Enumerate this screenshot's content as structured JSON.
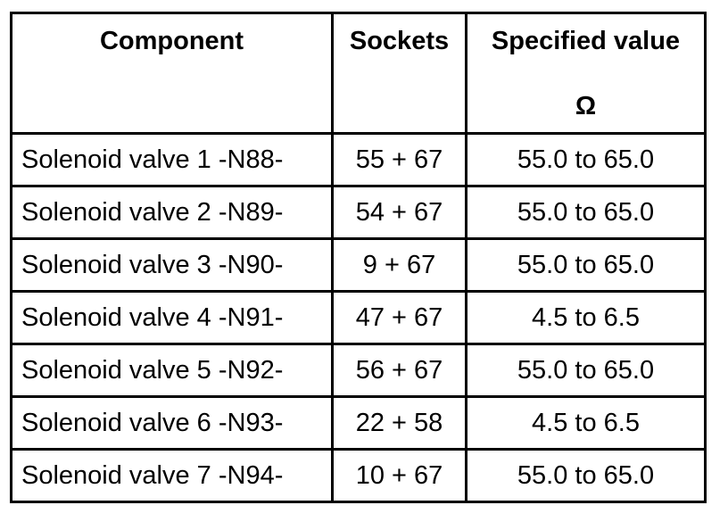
{
  "table": {
    "header": [
      "Component",
      "Sockets",
      "Specified value"
    ],
    "header_unit": "Ω",
    "rows": [
      [
        "Solenoid valve 1 -N88-",
        "55 + 67",
        "55.0 to 65.0"
      ],
      [
        "Solenoid valve 2 -N89-",
        "54 + 67",
        "55.0 to 65.0"
      ],
      [
        "Solenoid valve 3 -N90-",
        "9 + 67",
        "55.0 to 65.0"
      ],
      [
        "Solenoid valve 4 -N91-",
        "47 + 67",
        "4.5 to 6.5"
      ],
      [
        "Solenoid valve 5 -N92-",
        "56 + 67",
        "55.0 to 65.0"
      ],
      [
        "Solenoid valve 6 -N93-",
        "22 + 58",
        "4.5 to 6.5"
      ],
      [
        "Solenoid valve 7 -N94-",
        "10 + 67",
        "55.0 to 65.0"
      ]
    ]
  }
}
